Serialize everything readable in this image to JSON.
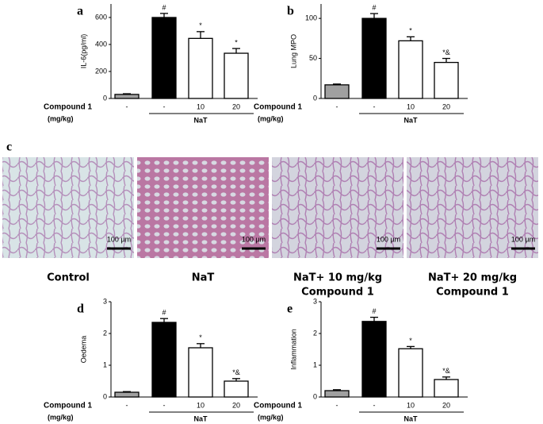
{
  "chart_data": [
    {
      "type": "bar",
      "label": "a",
      "ylabel": "IL-6(pg/ml)",
      "categories": [
        "-",
        "-",
        "10",
        "20"
      ],
      "values": [
        30,
        600,
        445,
        335
      ],
      "errors": [
        5,
        30,
        50,
        35
      ],
      "colors": [
        "#a0a0a0",
        "#000000",
        "#ffffff",
        "#ffffff"
      ],
      "annotations": [
        null,
        "#",
        "*",
        "*"
      ],
      "ylim": [
        0,
        700
      ],
      "yticks": [
        0,
        200,
        400,
        600
      ],
      "x_label": [
        "Compound 1",
        "(mg/kg)"
      ],
      "group_label": "NaT"
    },
    {
      "type": "bar",
      "label": "b",
      "ylabel": "Lung MPO",
      "categories": [
        "-",
        "-",
        "10",
        "20"
      ],
      "values": [
        17,
        100,
        72,
        45
      ],
      "errors": [
        1,
        6,
        5,
        5
      ],
      "colors": [
        "#a0a0a0",
        "#000000",
        "#ffffff",
        "#ffffff"
      ],
      "annotations": [
        null,
        "#",
        "*",
        "*&"
      ],
      "ylim": [
        0,
        118
      ],
      "yticks": [
        0,
        50,
        100
      ],
      "x_label": [
        "Compound 1",
        "(mg/kg)"
      ],
      "group_label": "NaT"
    },
    {
      "type": "bar",
      "label": "d",
      "ylabel": "Oedema",
      "categories": [
        "-",
        "-",
        "10",
        "20"
      ],
      "values": [
        0.15,
        2.35,
        1.55,
        0.5
      ],
      "errors": [
        0.02,
        0.12,
        0.13,
        0.08
      ],
      "colors": [
        "#a0a0a0",
        "#000000",
        "#ffffff",
        "#ffffff"
      ],
      "annotations": [
        null,
        "#",
        "*",
        "*&"
      ],
      "ylim": [
        0,
        3
      ],
      "yticks": [
        0,
        1,
        2,
        3
      ],
      "x_label": [
        "Compound 1",
        "(mg/kg)"
      ],
      "group_label": "NaT"
    },
    {
      "type": "bar",
      "label": "e",
      "ylabel": "Inflammation",
      "categories": [
        "-",
        "-",
        "10",
        "20"
      ],
      "values": [
        0.2,
        2.38,
        1.52,
        0.55
      ],
      "errors": [
        0.03,
        0.13,
        0.07,
        0.08
      ],
      "colors": [
        "#a0a0a0",
        "#000000",
        "#ffffff",
        "#ffffff"
      ],
      "annotations": [
        null,
        "#",
        "*",
        "*&"
      ],
      "ylim": [
        0,
        3
      ],
      "yticks": [
        0,
        1,
        2,
        3
      ],
      "x_label": [
        "Compound 1",
        "(mg/kg)"
      ],
      "group_label": "NaT"
    }
  ],
  "panel_c": {
    "label": "c",
    "images": [
      {
        "caption": [
          "Control"
        ],
        "scale_bar": "100 µm"
      },
      {
        "caption": [
          "NaT"
        ],
        "scale_bar": "100 µm"
      },
      {
        "caption": [
          "NaT+ 10 mg/kg",
          "Compound 1"
        ],
        "scale_bar": "100 µm"
      },
      {
        "caption": [
          "NaT+ 20 mg/kg",
          "Compound 1"
        ],
        "scale_bar": "100 µm"
      }
    ]
  }
}
